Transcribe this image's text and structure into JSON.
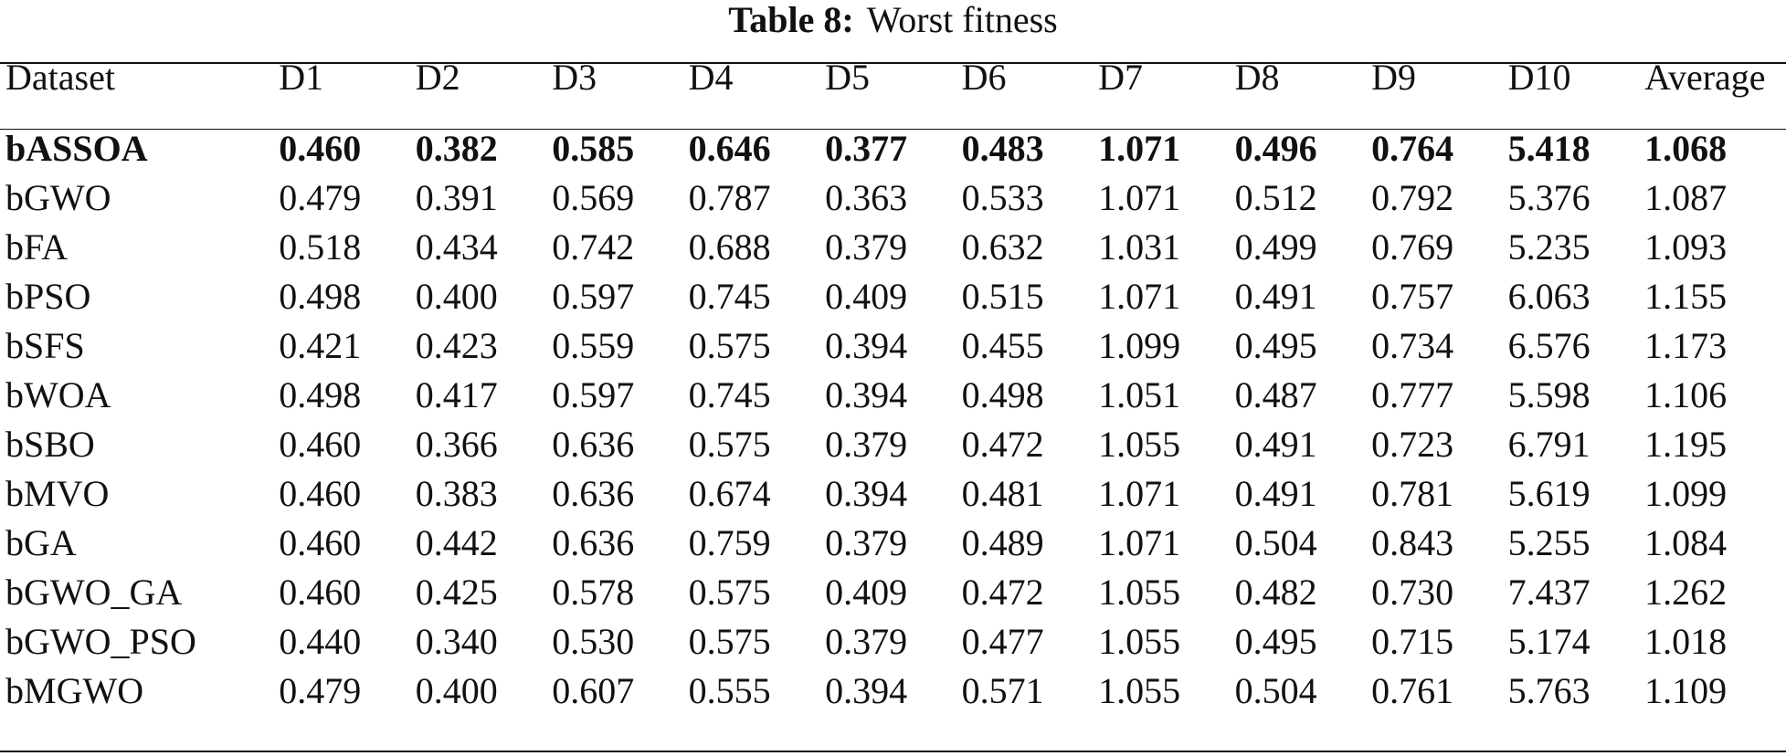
{
  "caption": {
    "label": "Table 8:",
    "title": "Worst fitness"
  },
  "table": {
    "columns": [
      "Dataset",
      "D1",
      "D2",
      "D3",
      "D4",
      "D5",
      "D6",
      "D7",
      "D8",
      "D9",
      "D10",
      "Average"
    ],
    "rows": [
      {
        "name": "bASSOA",
        "values": [
          "0.460",
          "0.382",
          "0.585",
          "0.646",
          "0.377",
          "0.483",
          "1.071",
          "0.496",
          "0.764",
          "5.418",
          "1.068"
        ]
      },
      {
        "name": "bGWO",
        "values": [
          "0.479",
          "0.391",
          "0.569",
          "0.787",
          "0.363",
          "0.533",
          "1.071",
          "0.512",
          "0.792",
          "5.376",
          "1.087"
        ]
      },
      {
        "name": "bFA",
        "values": [
          "0.518",
          "0.434",
          "0.742",
          "0.688",
          "0.379",
          "0.632",
          "1.031",
          "0.499",
          "0.769",
          "5.235",
          "1.093"
        ]
      },
      {
        "name": "bPSO",
        "values": [
          "0.498",
          "0.400",
          "0.597",
          "0.745",
          "0.409",
          "0.515",
          "1.071",
          "0.491",
          "0.757",
          "6.063",
          "1.155"
        ]
      },
      {
        "name": "bSFS",
        "values": [
          "0.421",
          "0.423",
          "0.559",
          "0.575",
          "0.394",
          "0.455",
          "1.099",
          "0.495",
          "0.734",
          "6.576",
          "1.173"
        ]
      },
      {
        "name": "bWOA",
        "values": [
          "0.498",
          "0.417",
          "0.597",
          "0.745",
          "0.394",
          "0.498",
          "1.051",
          "0.487",
          "0.777",
          "5.598",
          "1.106"
        ]
      },
      {
        "name": "bSBO",
        "values": [
          "0.460",
          "0.366",
          "0.636",
          "0.575",
          "0.379",
          "0.472",
          "1.055",
          "0.491",
          "0.723",
          "6.791",
          "1.195"
        ]
      },
      {
        "name": "bMVO",
        "values": [
          "0.460",
          "0.383",
          "0.636",
          "0.674",
          "0.394",
          "0.481",
          "1.071",
          "0.491",
          "0.781",
          "5.619",
          "1.099"
        ]
      },
      {
        "name": "bGA",
        "values": [
          "0.460",
          "0.442",
          "0.636",
          "0.759",
          "0.379",
          "0.489",
          "1.071",
          "0.504",
          "0.843",
          "5.255",
          "1.084"
        ]
      },
      {
        "name": "bGWO_GA",
        "values": [
          "0.460",
          "0.425",
          "0.578",
          "0.575",
          "0.409",
          "0.472",
          "1.055",
          "0.482",
          "0.730",
          "7.437",
          "1.262"
        ]
      },
      {
        "name": "bGWO_PSO",
        "values": [
          "0.440",
          "0.340",
          "0.530",
          "0.575",
          "0.379",
          "0.477",
          "1.055",
          "0.495",
          "0.715",
          "5.174",
          "1.018"
        ]
      },
      {
        "name": "bMGWO",
        "values": [
          "0.479",
          "0.400",
          "0.607",
          "0.555",
          "0.394",
          "0.571",
          "1.055",
          "0.504",
          "0.761",
          "5.763",
          "1.109"
        ]
      }
    ],
    "highlight_row": "bASSOA"
  }
}
